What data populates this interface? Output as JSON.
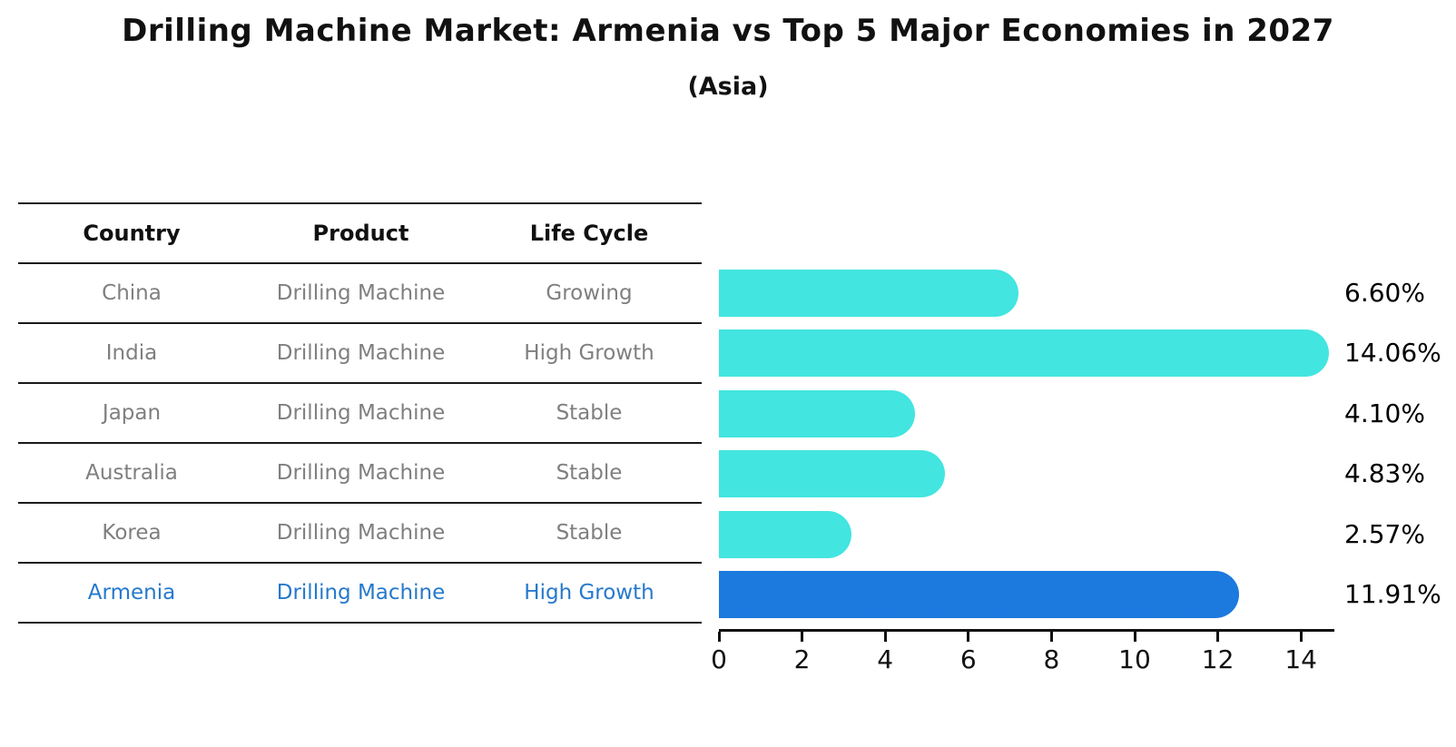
{
  "title": "Drilling Machine Market: Armenia vs Top 5 Major Economies in 2027",
  "subtitle": "(Asia)",
  "table": {
    "headers": [
      "Country",
      "Product",
      "Life Cycle"
    ],
    "rows": [
      {
        "country": "China",
        "product": "Drilling Machine",
        "life_cycle": "Growing"
      },
      {
        "country": "India",
        "product": "Drilling Machine",
        "life_cycle": "High Growth"
      },
      {
        "country": "Japan",
        "product": "Drilling Machine",
        "life_cycle": "Stable"
      },
      {
        "country": "Australia",
        "product": "Drilling Machine",
        "life_cycle": "Stable"
      },
      {
        "country": "Korea",
        "product": "Drilling Machine",
        "life_cycle": "Stable"
      },
      {
        "country": "Armenia",
        "product": "Drilling Machine",
        "life_cycle": "High Growth"
      }
    ]
  },
  "chart_data": {
    "type": "bar",
    "orientation": "horizontal",
    "title": "Drilling Machine Market: Armenia vs Top 5 Major Economies in 2027",
    "subtitle": "(Asia)",
    "categories": [
      "China",
      "India",
      "Japan",
      "Australia",
      "Korea",
      "Armenia"
    ],
    "values": [
      6.6,
      14.06,
      4.1,
      4.83,
      2.57,
      11.91
    ],
    "value_labels": [
      "6.60%",
      "14.06%",
      "4.10%",
      "4.83%",
      "2.57%",
      "11.91%"
    ],
    "highlight_category": "Armenia",
    "highlight_index": 5,
    "x_ticks": [
      0,
      2,
      4,
      6,
      8,
      10,
      12,
      14
    ],
    "xlim": [
      0,
      14.8
    ],
    "grid": false,
    "legend": false,
    "colors": {
      "bar": "#42E5E0",
      "highlight_bar": "#1C7ADF",
      "highlight_text": "#2679CC",
      "row_text": "#7F7F7F",
      "axis": "#111111"
    }
  }
}
